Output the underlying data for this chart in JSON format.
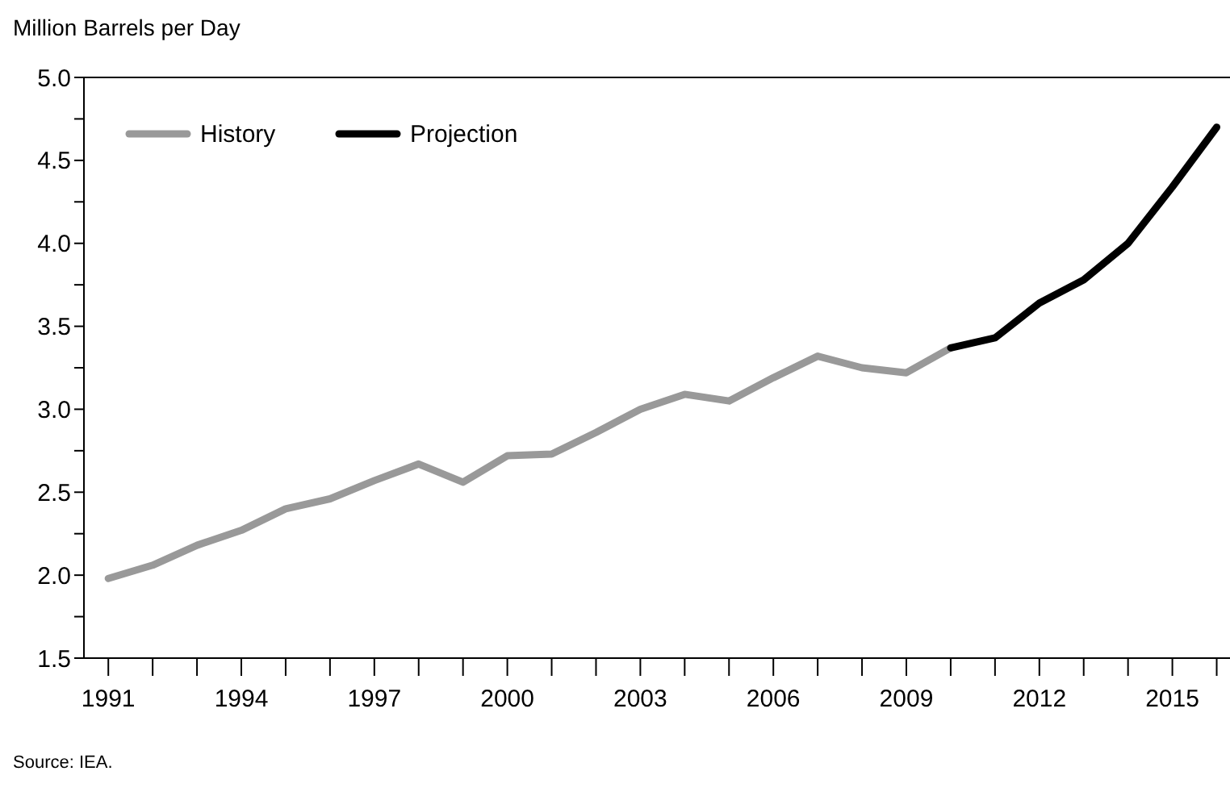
{
  "chart_data": {
    "type": "line",
    "ylabel": "Million Barrels per Day",
    "annotations": [
      "Source: IEA."
    ],
    "xlim": [
      1990.45,
      2016.3
    ],
    "xticks": [
      1991,
      {
        "value": 1992,
        "label": null
      },
      {
        "value": 1993,
        "label": null
      },
      1994,
      {
        "value": 1995,
        "label": null
      },
      {
        "value": 1996,
        "label": null
      },
      1997,
      {
        "value": 1998,
        "label": null
      },
      {
        "value": 1999,
        "label": null
      },
      2000,
      {
        "value": 2001,
        "label": null
      },
      {
        "value": 2002,
        "label": null
      },
      2003,
      {
        "value": 2004,
        "label": null
      },
      {
        "value": 2005,
        "label": null
      },
      2006,
      {
        "value": 2007,
        "label": null
      },
      {
        "value": 2008,
        "label": null
      },
      2009,
      {
        "value": 2010,
        "label": null
      },
      {
        "value": 2011,
        "label": null
      },
      2012,
      {
        "value": 2013,
        "label": null
      },
      {
        "value": 2014,
        "label": null
      },
      2015,
      {
        "value": 2016,
        "label": null
      }
    ],
    "ylim": [
      1.5,
      5.0
    ],
    "yticks": [
      {
        "value": 1.5,
        "label": "1.5"
      },
      {
        "value": 1.75,
        "label": null
      },
      {
        "value": 2,
        "label": "2.0"
      },
      {
        "value": 2.25,
        "label": null
      },
      {
        "value": 2.5,
        "label": "2.5"
      },
      {
        "value": 2.75,
        "label": null
      },
      {
        "value": 3,
        "label": "3.0"
      },
      {
        "value": 3.25,
        "label": null
      },
      {
        "value": 3.5,
        "label": "3.5"
      },
      {
        "value": 3.75,
        "label": null
      },
      {
        "value": 4,
        "label": "4.0"
      },
      {
        "value": 4.25,
        "label": null
      },
      {
        "value": 4.5,
        "label": "4.5"
      },
      {
        "value": 4.75,
        "label": null
      },
      {
        "value": 5,
        "label": "5.0"
      }
    ],
    "grid": false,
    "legend": "top left",
    "marker": "none",
    "line_style": "solid",
    "series": [
      {
        "name": "History",
        "color": "#999999",
        "x": [
          1991,
          1992,
          1993,
          1994,
          1995,
          1996,
          1997,
          1998,
          1999,
          2000,
          2001,
          2002,
          2003,
          2004,
          2005,
          2006,
          2007,
          2008,
          2009,
          2010
        ],
        "values": [
          1.98,
          2.06,
          2.18,
          2.27,
          2.4,
          2.46,
          2.57,
          2.67,
          2.56,
          2.72,
          2.73,
          2.86,
          3.0,
          3.09,
          3.05,
          3.19,
          3.32,
          3.25,
          3.22,
          3.37
        ]
      },
      {
        "name": "Projection",
        "color": "#000000",
        "x": [
          2010,
          2011,
          2012,
          2013,
          2014,
          2015,
          2016
        ],
        "values": [
          3.37,
          3.43,
          3.64,
          3.78,
          4.0,
          4.34,
          4.7
        ]
      }
    ]
  }
}
